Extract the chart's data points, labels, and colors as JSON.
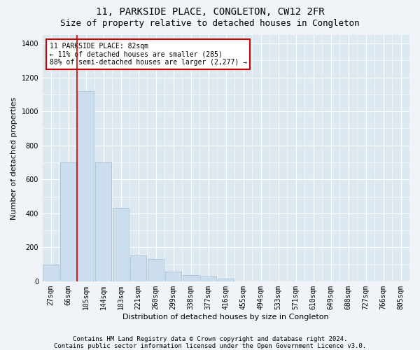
{
  "title": "11, PARKSIDE PLACE, CONGLETON, CW12 2FR",
  "subtitle": "Size of property relative to detached houses in Congleton",
  "xlabel": "Distribution of detached houses by size in Congleton",
  "ylabel": "Number of detached properties",
  "bin_labels": [
    "27sqm",
    "66sqm",
    "105sqm",
    "144sqm",
    "183sqm",
    "221sqm",
    "260sqm",
    "299sqm",
    "338sqm",
    "377sqm",
    "416sqm",
    "455sqm",
    "494sqm",
    "533sqm",
    "571sqm",
    "610sqm",
    "649sqm",
    "688sqm",
    "727sqm",
    "766sqm",
    "805sqm"
  ],
  "bar_heights": [
    100,
    700,
    1120,
    700,
    430,
    150,
    130,
    55,
    35,
    30,
    15,
    0,
    0,
    0,
    0,
    0,
    0,
    0,
    0,
    0,
    0
  ],
  "bar_color": "#ccdded",
  "bar_edgecolor": "#9ab8cc",
  "property_bar_index": 1,
  "annotation_text": "11 PARKSIDE PLACE: 82sqm\n← 11% of detached houses are smaller (285)\n88% of semi-detached houses are larger (2,277) →",
  "annotation_box_color": "#ffffff",
  "annotation_box_edgecolor": "#cc0000",
  "vline_color": "#cc0000",
  "ylim": [
    0,
    1450
  ],
  "yticks": [
    0,
    200,
    400,
    600,
    800,
    1000,
    1200,
    1400
  ],
  "footnote1": "Contains HM Land Registry data © Crown copyright and database right 2024.",
  "footnote2": "Contains public sector information licensed under the Open Government Licence v3.0.",
  "bg_color": "#f0f4f8",
  "plot_bg_color": "#dde8f0",
  "grid_color": "#ffffff",
  "title_fontsize": 10,
  "subtitle_fontsize": 9,
  "axis_label_fontsize": 8,
  "tick_fontsize": 7,
  "footnote_fontsize": 6.5
}
